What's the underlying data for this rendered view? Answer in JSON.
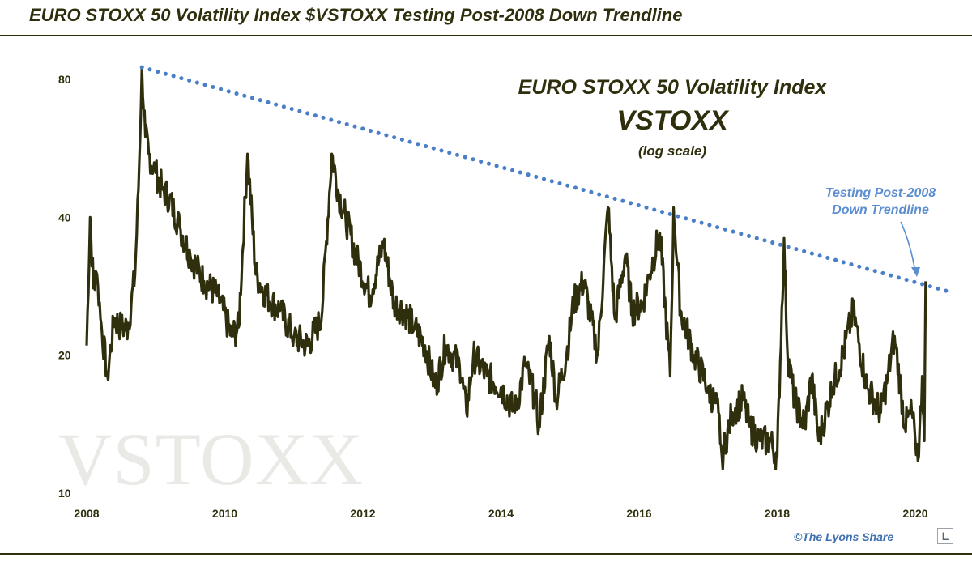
{
  "header": {
    "title": "EURO STOXX 50 Volatility Index $VSTOXX Testing Post-2008 Down Trendline"
  },
  "watermark": "VSTOXX",
  "annotation": {
    "lines": [
      "Testing Post-2008",
      "Down Trendline"
    ]
  },
  "credit": {
    "text": "©The Lyons Share",
    "logo_letter": "L"
  },
  "colors": {
    "series": "#2f2f0e",
    "trendline": "#4a7fc8",
    "annotation": "#5b8ed0",
    "title": "#2f2f0e"
  },
  "chart_data": {
    "type": "line",
    "title": "EURO STOXX 50 Volatility Index",
    "subtitle": "VSTOXX",
    "scale_note": "(log scale)",
    "yscale": "log",
    "xlim": [
      2008.0,
      2020.5
    ],
    "ylim": [
      10,
      90
    ],
    "y_ticks": [
      10,
      20,
      40,
      80
    ],
    "x_ticks": [
      2008,
      2010,
      2012,
      2014,
      2016,
      2018,
      2020
    ],
    "grid": false,
    "legend": "none",
    "series": [
      {
        "values_x": [
          2008.0,
          2008.05,
          2008.1,
          2008.15,
          2008.2,
          2008.3,
          2008.4,
          2008.5,
          2008.6,
          2008.7,
          2008.75,
          2008.8,
          2008.85,
          2008.9,
          2009.0,
          2009.1,
          2009.2,
          2009.35,
          2009.5,
          2009.7,
          2009.9,
          2010.1,
          2010.2,
          2010.33,
          2010.45,
          2010.6,
          2010.8,
          2011.0,
          2011.2,
          2011.4,
          2011.55,
          2011.65,
          2011.75,
          2011.9,
          2012.1,
          2012.3,
          2012.45,
          2012.6,
          2012.75,
          2012.9,
          2013.05,
          2013.2,
          2013.4,
          2013.5,
          2013.6,
          2013.8,
          2014.0,
          2014.2,
          2014.35,
          2014.5,
          2014.55,
          2014.7,
          2014.8,
          2014.95,
          2015.05,
          2015.2,
          2015.4,
          2015.55,
          2015.65,
          2015.8,
          2015.9,
          2016.05,
          2016.15,
          2016.3,
          2016.45,
          2016.5,
          2016.6,
          2016.8,
          2017.0,
          2017.15,
          2017.2,
          2017.35,
          2017.5,
          2017.6,
          2017.75,
          2017.9,
          2018.0,
          2018.1,
          2018.15,
          2018.25,
          2018.4,
          2018.5,
          2018.6,
          2018.8,
          2018.95,
          2019.1,
          2019.3,
          2019.4,
          2019.5,
          2019.6,
          2019.7,
          2019.85,
          2019.95,
          2020.0,
          2020.05,
          2020.1,
          2020.13,
          2020.15
        ],
        "values_y": [
          21,
          40,
          28,
          30,
          24,
          18,
          24,
          23,
          23,
          30,
          46,
          85,
          60,
          55,
          50,
          46,
          44,
          38,
          33,
          29,
          27,
          22,
          23,
          55,
          30,
          27,
          25,
          22,
          21,
          24,
          55,
          45,
          40,
          33,
          27,
          35,
          26,
          25,
          23,
          21,
          17,
          21,
          19,
          15,
          20,
          18,
          17,
          15,
          19,
          16,
          14,
          22,
          16,
          20,
          26,
          29,
          20,
          42,
          24,
          33,
          25,
          26,
          30,
          37,
          18,
          42,
          25,
          20,
          17,
          15,
          12,
          15,
          16,
          14,
          13,
          13,
          12,
          36,
          20,
          16,
          14,
          18,
          13,
          17,
          20,
          25,
          17,
          16,
          15,
          18,
          22,
          14,
          15,
          13,
          12,
          18,
          13,
          29
        ]
      }
    ],
    "trendline": {
      "x": [
        2008.8,
        2020.5
      ],
      "y": [
        85,
        27.5
      ]
    }
  }
}
